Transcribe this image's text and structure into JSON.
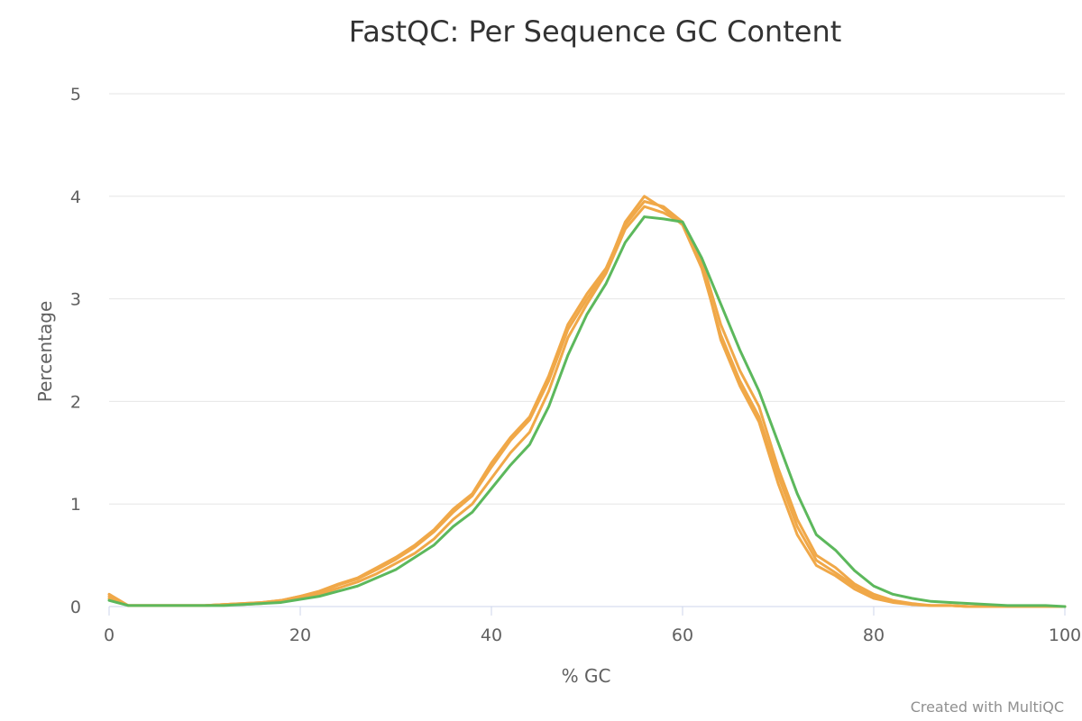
{
  "chart_data": {
    "type": "line",
    "title": "FastQC: Per Sequence GC Content",
    "xlabel": "% GC",
    "ylabel": "Percentage",
    "xlim": [
      0,
      100
    ],
    "ylim": [
      0,
      5
    ],
    "xticks": [
      0,
      20,
      40,
      60,
      80,
      100
    ],
    "yticks": [
      0,
      1,
      2,
      3,
      4,
      5
    ],
    "grid": true,
    "legend": "none",
    "colors": {
      "orange": "#f0a848",
      "green": "#5cb85c"
    },
    "x": [
      0,
      2,
      4,
      6,
      8,
      10,
      12,
      14,
      16,
      18,
      20,
      22,
      24,
      26,
      28,
      30,
      32,
      34,
      36,
      38,
      40,
      42,
      44,
      46,
      48,
      50,
      52,
      54,
      56,
      58,
      60,
      62,
      64,
      66,
      68,
      70,
      72,
      74,
      76,
      78,
      80,
      82,
      84,
      86,
      88,
      90,
      92,
      94,
      96,
      98,
      100
    ],
    "series": [
      {
        "color": "#f0a848",
        "values": [
          0.12,
          0.01,
          0.01,
          0.01,
          0.01,
          0.01,
          0.02,
          0.03,
          0.04,
          0.06,
          0.1,
          0.15,
          0.22,
          0.28,
          0.38,
          0.48,
          0.6,
          0.75,
          0.95,
          1.1,
          1.4,
          1.65,
          1.85,
          2.25,
          2.75,
          3.05,
          3.3,
          3.72,
          3.95,
          3.9,
          3.75,
          3.35,
          2.6,
          2.15,
          1.8,
          1.2,
          0.7,
          0.4,
          0.3,
          0.17,
          0.08,
          0.04,
          0.02,
          0.01,
          0.01,
          0.0,
          0.0,
          0.0,
          0.0,
          0.0,
          0.0
        ]
      },
      {
        "color": "#f0a848",
        "values": [
          0.1,
          0.01,
          0.01,
          0.01,
          0.01,
          0.01,
          0.02,
          0.03,
          0.04,
          0.06,
          0.1,
          0.14,
          0.21,
          0.27,
          0.36,
          0.46,
          0.58,
          0.73,
          0.92,
          1.08,
          1.36,
          1.62,
          1.82,
          2.2,
          2.7,
          3.0,
          3.28,
          3.75,
          4.0,
          3.88,
          3.72,
          3.3,
          2.65,
          2.2,
          1.85,
          1.28,
          0.78,
          0.45,
          0.33,
          0.2,
          0.1,
          0.05,
          0.02,
          0.01,
          0.01,
          0.0,
          0.0,
          0.0,
          0.0,
          0.0,
          0.0
        ]
      },
      {
        "color": "#f0a848",
        "values": [
          0.08,
          0.01,
          0.01,
          0.01,
          0.01,
          0.01,
          0.02,
          0.02,
          0.03,
          0.05,
          0.09,
          0.12,
          0.18,
          0.24,
          0.32,
          0.42,
          0.52,
          0.66,
          0.85,
          1.0,
          1.25,
          1.5,
          1.7,
          2.1,
          2.62,
          2.95,
          3.25,
          3.68,
          3.9,
          3.84,
          3.74,
          3.38,
          2.75,
          2.3,
          1.95,
          1.35,
          0.85,
          0.5,
          0.38,
          0.22,
          0.12,
          0.06,
          0.03,
          0.01,
          0.01,
          0.0,
          0.0,
          0.0,
          0.0,
          0.0,
          0.0
        ]
      },
      {
        "color": "#5cb85c",
        "values": [
          0.06,
          0.01,
          0.01,
          0.01,
          0.01,
          0.01,
          0.01,
          0.02,
          0.03,
          0.04,
          0.07,
          0.1,
          0.15,
          0.2,
          0.28,
          0.36,
          0.48,
          0.6,
          0.78,
          0.92,
          1.15,
          1.38,
          1.58,
          1.95,
          2.45,
          2.85,
          3.15,
          3.55,
          3.8,
          3.78,
          3.75,
          3.4,
          2.95,
          2.5,
          2.1,
          1.6,
          1.1,
          0.7,
          0.55,
          0.35,
          0.2,
          0.12,
          0.08,
          0.05,
          0.04,
          0.03,
          0.02,
          0.01,
          0.01,
          0.01,
          0.0
        ]
      }
    ]
  },
  "footer": {
    "credit": "Created with MultiQC"
  }
}
